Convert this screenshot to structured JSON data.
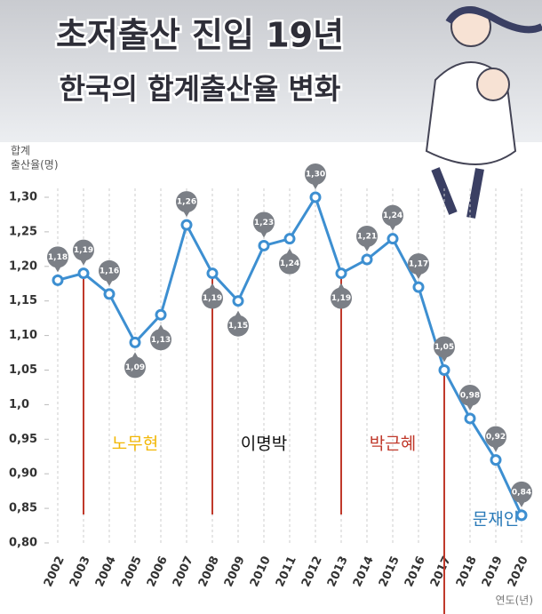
{
  "chart_data": {
    "type": "line",
    "title": "초저출산 진입 19년",
    "subtitle": "한국의 합계출산율 변화",
    "y_label": [
      "합계",
      "출산율(명)"
    ],
    "x_label": "연도(년)",
    "categories": [
      "2002",
      "2003",
      "2004",
      "2005",
      "2006",
      "2007",
      "2008",
      "2009",
      "2010",
      "2011",
      "2012",
      "2013",
      "2014",
      "2015",
      "2016",
      "2017",
      "2018",
      "2019",
      "2020"
    ],
    "values": [
      1.18,
      1.19,
      1.16,
      1.09,
      1.13,
      1.26,
      1.19,
      1.15,
      1.23,
      1.24,
      1.3,
      1.19,
      1.21,
      1.24,
      1.17,
      1.05,
      0.98,
      0.92,
      0.84
    ],
    "value_labels": [
      "1,18",
      "1,19",
      "1,16",
      "1,09",
      "1,13",
      "1,26",
      "1,19",
      "1,15",
      "1,23",
      "1,24",
      "1,30",
      "1,19",
      "1,21",
      "1,24",
      "1,17",
      "1,05",
      "0,98",
      "0,92",
      "0,84"
    ],
    "color": "#3d8fd1",
    "ylim": [
      0.8,
      1.3
    ],
    "yticks": [
      {
        "value": 0.8,
        "label": "0,80"
      },
      {
        "value": 0.85,
        "label": "0,85"
      },
      {
        "value": 0.9,
        "label": "0,90"
      },
      {
        "value": 0.95,
        "label": "0,95"
      },
      {
        "value": 1.0,
        "label": "1,0"
      },
      {
        "value": 1.05,
        "label": "1,05"
      },
      {
        "value": 1.1,
        "label": "1,10"
      },
      {
        "value": 1.15,
        "label": "1,15"
      },
      {
        "value": 1.2,
        "label": "1,20"
      },
      {
        "value": 1.25,
        "label": "1,25"
      },
      {
        "value": 1.3,
        "label": "1,30"
      }
    ],
    "grid": true,
    "term_starts": [
      "2003",
      "2008",
      "2013",
      "2017"
    ],
    "term_color": "#c0392b",
    "annotations": [
      {
        "text": "노무현",
        "x": "2005",
        "color": "#f2b705"
      },
      {
        "text": "이명박",
        "x": "2010",
        "color": "#111111"
      },
      {
        "text": "박근혜",
        "x": "2015",
        "color": "#c0392b"
      },
      {
        "text": "문재인",
        "x": "2019",
        "color": "#2a7ab8"
      }
    ]
  }
}
